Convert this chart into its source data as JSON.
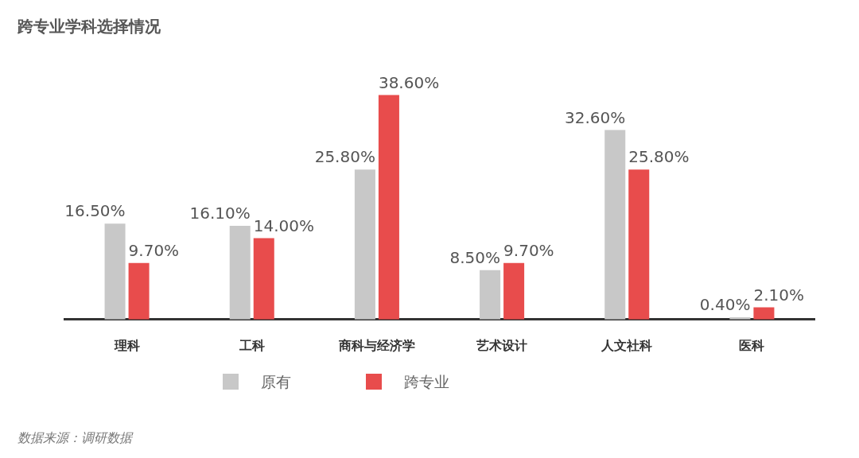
{
  "chart_data": {
    "type": "bar",
    "title": "跨专业学科选择情况",
    "categories": [
      "理科",
      "工科",
      "商科与经济学",
      "艺术设计",
      "人文社科",
      "医科"
    ],
    "series": [
      {
        "name": "原有",
        "color": "#c8c8c8",
        "values": [
          16.5,
          16.1,
          25.8,
          8.5,
          32.6,
          0.4
        ],
        "value_labels": [
          "16.50%",
          "16.10%",
          "25.80%",
          "8.50%",
          "32.60%",
          "0.40%"
        ]
      },
      {
        "name": "跨专业",
        "color": "#e84c4c",
        "values": [
          9.7,
          14.0,
          38.6,
          9.7,
          25.8,
          2.1
        ],
        "value_labels": [
          "9.70%",
          "14.00%",
          "38.60%",
          "9.70%",
          "25.80%",
          "2.10%"
        ]
      }
    ],
    "legend": "bottom",
    "grid": false,
    "tick_labels": "x",
    "annotations": [
      "数据来源：调研数据"
    ]
  }
}
